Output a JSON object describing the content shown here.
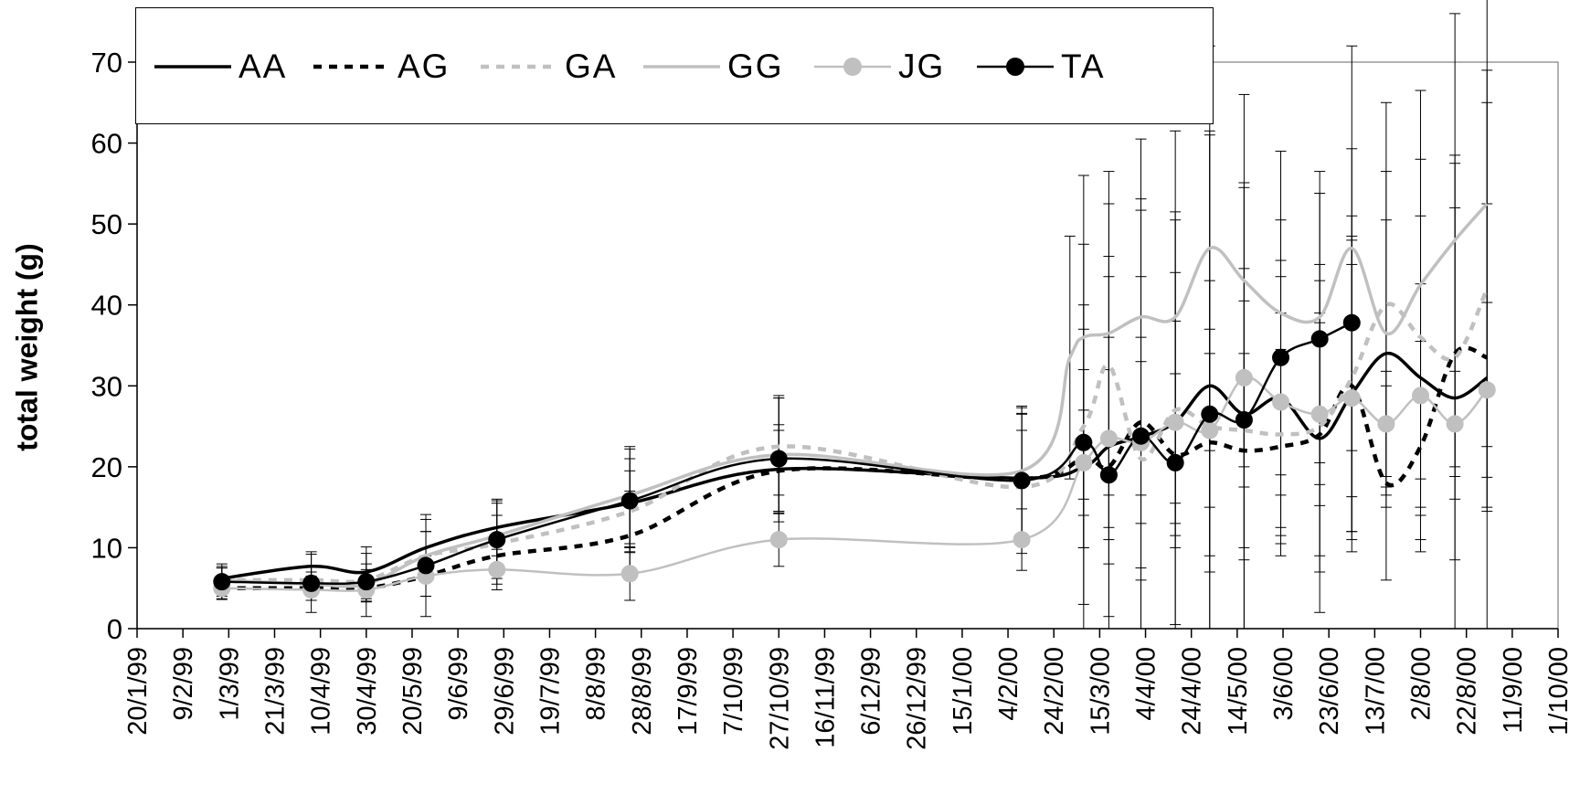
{
  "chart_data": {
    "type": "line",
    "ylabel": "total weight (g)",
    "xlabel": "",
    "ylim": [
      0,
      70
    ],
    "yticks": [
      0,
      10,
      20,
      30,
      40,
      50,
      60,
      70
    ],
    "xlim": [
      "20/1/99",
      "1/10/00"
    ],
    "xtick_labels": [
      "20/1/99",
      "9/2/99",
      "1/3/99",
      "21/3/99",
      "10/4/99",
      "30/4/99",
      "20/5/99",
      "9/6/99",
      "29/6/99",
      "19/7/99",
      "8/8/99",
      "28/8/99",
      "17/9/99",
      "7/10/99",
      "27/10/99",
      "16/11/99",
      "6/12/99",
      "26/12/99",
      "15/1/00",
      "4/2/00",
      "24/2/00",
      "15/3/00",
      "4/4/00",
      "24/4/00",
      "14/5/00",
      "3/6/00",
      "23/6/00",
      "13/7/00",
      "2/8/00",
      "22/8/00",
      "11/9/00",
      "1/10/00"
    ],
    "legend_position": "top",
    "grid": false,
    "series": [
      {
        "name": "AA",
        "color": "#000000",
        "style": "solid-thick",
        "x": [
          "26/2/99",
          "6/4/99",
          "30/4/99",
          "26/5/99",
          "26/6/99",
          "23/8/99",
          "27/10/99",
          "10/2/00",
          "8/3/00",
          "19/3/00",
          "2/4/00",
          "17/4/00",
          "2/5/00",
          "17/5/00",
          "2/6/00",
          "19/6/00",
          "3/7/00",
          "18/7/00",
          "2/8/00",
          "17/8/00",
          "31/8/00"
        ],
        "y": [
          6.2,
          7.7,
          7.0,
          10.0,
          12.5,
          15.5,
          19.7,
          18.6,
          20.0,
          22.5,
          23.7,
          25.5,
          30.0,
          26.5,
          28.5,
          23.5,
          29.0,
          34.0,
          31.0,
          28.5,
          31.0
        ],
        "err": [
          1.5,
          1.8,
          2.3,
          3.5,
          3.5,
          5.5,
          5.5,
          8.0,
          17.0,
          21.0,
          28.0,
          25.0,
          31.0,
          28.0,
          17.0,
          21.5,
          19.5,
          16.5,
          20.0,
          29.0,
          34.0
        ]
      },
      {
        "name": "AG",
        "color": "#000000",
        "style": "dashed-thick",
        "x": [
          "26/2/99",
          "6/4/99",
          "30/4/99",
          "26/5/99",
          "26/6/99",
          "23/8/99",
          "27/10/99",
          "10/2/00",
          "8/3/00",
          "19/3/00",
          "2/4/00",
          "17/4/00",
          "2/5/00",
          "17/5/00",
          "2/6/00",
          "19/6/00",
          "3/7/00",
          "18/7/00",
          "2/8/00",
          "17/8/00",
          "31/8/00"
        ],
        "y": [
          5.0,
          5.0,
          5.0,
          6.5,
          9.0,
          11.5,
          19.5,
          18.5,
          21.0,
          20.0,
          25.5,
          21.5,
          23.0,
          22.0,
          22.5,
          24.0,
          30.0,
          18.0,
          22.5,
          34.0,
          33.5
        ],
        "err": [
          1.3,
          1.5,
          1.6,
          2.5,
          3.5,
          5.5,
          5.0,
          8.0,
          11.0,
          12.0,
          18.0,
          10.0,
          14.0,
          12.0,
          12.0,
          15.0,
          18.0,
          12.0,
          13.0,
          18.0,
          19.0
        ]
      },
      {
        "name": "GA",
        "color": "#c0c0c0",
        "style": "dashed-thick",
        "x": [
          "26/2/99",
          "6/4/99",
          "30/4/99",
          "26/5/99",
          "26/6/99",
          "23/8/99",
          "27/10/99",
          "10/2/00",
          "8/3/00",
          "19/3/00",
          "2/4/00",
          "17/4/00",
          "2/5/00",
          "17/5/00",
          "2/6/00",
          "19/6/00",
          "3/7/00",
          "18/7/00",
          "2/8/00",
          "17/8/00",
          "31/8/00"
        ],
        "y": [
          6.0,
          6.0,
          6.0,
          9.0,
          10.5,
          14.5,
          22.5,
          17.5,
          25.0,
          32.5,
          21.0,
          27.0,
          25.0,
          24.5,
          24.0,
          25.0,
          31.0,
          40.0,
          36.0,
          33.5,
          42.0
        ],
        "err": [
          1.5,
          1.8,
          2.0,
          3.0,
          3.5,
          5.0,
          6.0,
          7.0,
          15.0,
          20.0,
          15.0,
          17.0,
          18.0,
          16.0,
          15.0,
          18.0,
          20.0,
          25.0,
          22.0,
          25.0,
          27.0
        ]
      },
      {
        "name": "GG",
        "color": "#c0c0c0",
        "style": "solid-thick",
        "x": [
          "26/2/99",
          "6/4/99",
          "30/4/99",
          "26/5/99",
          "26/6/99",
          "23/8/99",
          "27/10/99",
          "10/2/00",
          "2/3/00",
          "8/3/00",
          "19/3/00",
          "2/4/00",
          "17/4/00",
          "2/5/00",
          "17/5/00",
          "2/6/00",
          "19/6/00",
          "3/7/00",
          "18/7/00",
          "2/8/00",
          "17/8/00",
          "31/8/00"
        ],
        "y": [
          6.0,
          5.5,
          5.5,
          9.0,
          11.5,
          16.5,
          21.5,
          19.5,
          33.5,
          36.0,
          36.5,
          38.5,
          38.5,
          47.0,
          43.0,
          39.0,
          38.5,
          47.0,
          36.5,
          42.5,
          48.0,
          52.5
        ],
        "err": [
          1.5,
          1.5,
          1.8,
          3.0,
          4.0,
          6.0,
          7.0,
          8.0,
          15.0,
          20.0,
          20.0,
          22.0,
          23.0,
          25.0,
          23.0,
          20.0,
          18.0,
          25.0,
          20.0,
          24.0,
          28.0,
          30.0
        ]
      },
      {
        "name": "JG",
        "color": "#c0c0c0",
        "style": "solid-marker",
        "x": [
          "26/2/99",
          "6/4/99",
          "30/4/99",
          "26/5/99",
          "26/6/99",
          "23/8/99",
          "27/10/99",
          "10/2/00",
          "8/3/00",
          "19/3/00",
          "2/4/00",
          "17/4/00",
          "2/5/00",
          "17/5/00",
          "2/6/00",
          "19/6/00",
          "3/7/00",
          "18/7/00",
          "2/8/00",
          "17/8/00",
          "31/8/00"
        ],
        "y": [
          5.0,
          4.8,
          4.8,
          6.5,
          7.3,
          6.8,
          11.0,
          11.0,
          20.5,
          23.5,
          23.0,
          25.5,
          24.5,
          31.0,
          28.0,
          26.5,
          28.5,
          25.3,
          28.8,
          25.3,
          29.5
        ],
        "err": [
          1.0,
          1.3,
          1.5,
          2.5,
          2.5,
          3.3,
          3.3,
          3.8,
          6.5,
          12.5,
          10.0,
          12.5,
          9.5,
          13.5,
          15.5,
          11.3,
          16.5,
          6.5,
          13.8,
          6.5,
          10.8
        ]
      },
      {
        "name": "TA",
        "color": "#000000",
        "style": "solid-marker",
        "x": [
          "26/2/99",
          "6/4/99",
          "30/4/99",
          "26/5/99",
          "26/6/99",
          "23/8/99",
          "27/10/99",
          "10/2/00",
          "8/3/00",
          "19/3/00",
          "2/4/00",
          "17/4/00",
          "2/5/00",
          "17/5/00",
          "2/6/00",
          "19/6/00",
          "3/7/00",
          "18/7/00",
          "2/8/00",
          "17/8/00",
          "31/8/00"
        ],
        "y": [
          5.8,
          5.6,
          5.8,
          7.8,
          11.0,
          15.8,
          21.0,
          18.3,
          23.0,
          19.0,
          23.8,
          20.5,
          26.5,
          25.8,
          33.5,
          35.8,
          37.8,
          null,
          null,
          null,
          null
        ],
        "err": [
          2.2,
          3.6,
          4.3,
          6.3,
          4.8,
          6.4,
          7.8,
          9.0,
          24.5,
          27.0,
          29.3,
          31.0,
          35.0,
          29.3,
          17.0,
          18.0,
          21.5,
          null,
          null,
          null,
          null
        ]
      }
    ]
  }
}
